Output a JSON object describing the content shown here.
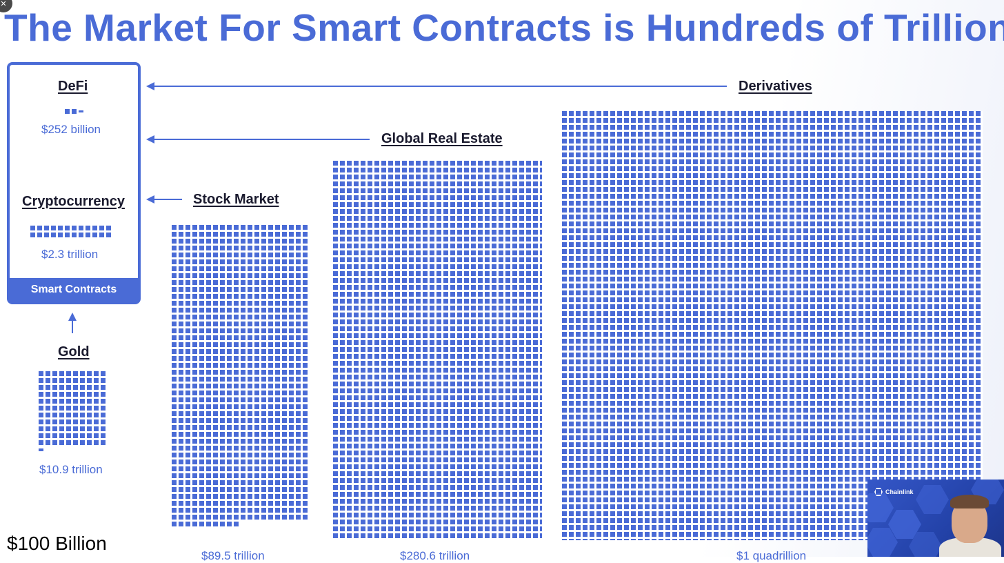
{
  "title": "The Market For Smart Contracts is Hundreds of Trillions",
  "colors": {
    "accent": "#4a6bd6",
    "text": "#1a1a2e"
  },
  "smart_contracts": {
    "footer_label": "Smart Contracts",
    "defi": {
      "label": "DeFi",
      "value": "$252 billion"
    },
    "crypto": {
      "label": "Cryptocurrency",
      "value": "$2.3 trillion"
    }
  },
  "gold": {
    "label": "Gold",
    "value": "$10.9 trillion"
  },
  "stock_market": {
    "label": "Stock Market",
    "value": "$89.5 trillion"
  },
  "real_estate": {
    "label": "Global Real Estate",
    "value": "$280.6 trillion"
  },
  "derivatives": {
    "label": "Derivatives",
    "value": "$1 quadrillion"
  },
  "scale_note": "$100 Billion",
  "video": {
    "brand": "Chainlink"
  }
}
